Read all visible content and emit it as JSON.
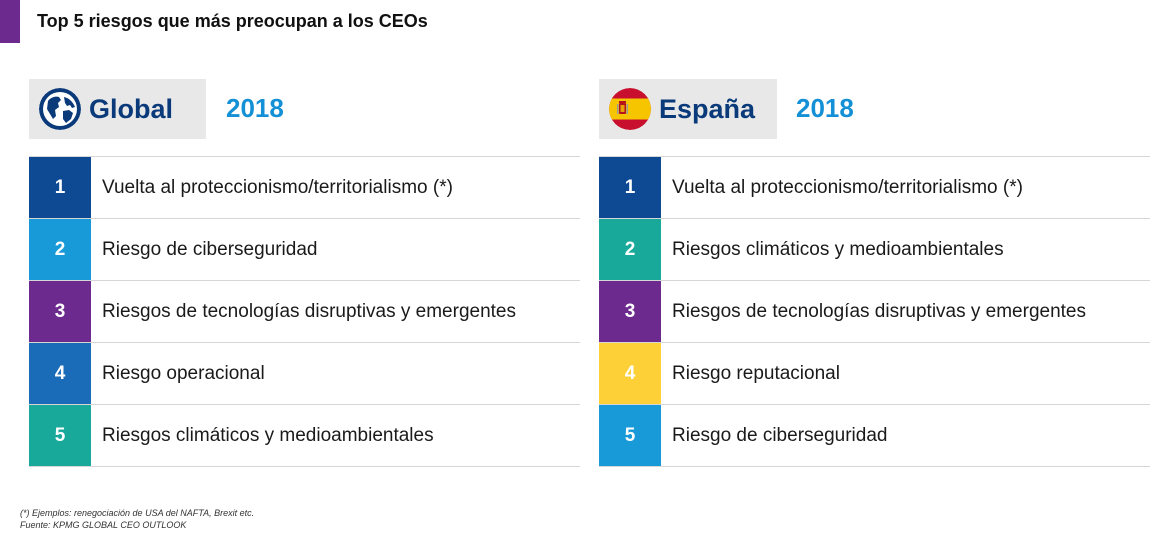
{
  "title": "Top 5 riesgos que más preocupan a los CEOs",
  "panels": [
    {
      "region": "Global",
      "year": "2018",
      "icon": "globe-icon",
      "items": [
        {
          "rank": "1",
          "label": "Vuelta al proteccionismo/territorialismo (*)",
          "color": "#0e4a93"
        },
        {
          "rank": "2",
          "label": "Riesgo de ciberseguridad",
          "color": "#189ad9"
        },
        {
          "rank": "3",
          "label": "Riesgos de tecnologías disruptivas y emergentes",
          "color": "#6d2a8e"
        },
        {
          "rank": "4",
          "label": "Riesgo operacional",
          "color": "#1a6bb8"
        },
        {
          "rank": "5",
          "label": "Riesgos climáticos y medioambientales",
          "color": "#19a99a"
        }
      ]
    },
    {
      "region": "España",
      "year": "2018",
      "icon": "spain-flag-icon",
      "items": [
        {
          "rank": "1",
          "label": "Vuelta al proteccionismo/territorialismo (*)",
          "color": "#0e4a93"
        },
        {
          "rank": "2",
          "label": "Riesgos climáticos y medioambientales",
          "color": "#19a99a"
        },
        {
          "rank": "3",
          "label": "Riesgos de tecnologías disruptivas y emergentes",
          "color": "#6d2a8e"
        },
        {
          "rank": "4",
          "label": "Riesgo reputacional",
          "color": "#fdd037"
        },
        {
          "rank": "5",
          "label": "Riesgo de ciberseguridad",
          "color": "#189ad9"
        }
      ]
    }
  ],
  "footnotes": {
    "note": "(*) Ejemplos: renegociación de USA del NAFTA, Brexit etc.",
    "source": "Fuente: KPMG GLOBAL CEO OUTLOOK"
  },
  "colors": {
    "accent": "#6d2a8e",
    "heading": "#0a3a7a",
    "year": "#1490d6"
  }
}
